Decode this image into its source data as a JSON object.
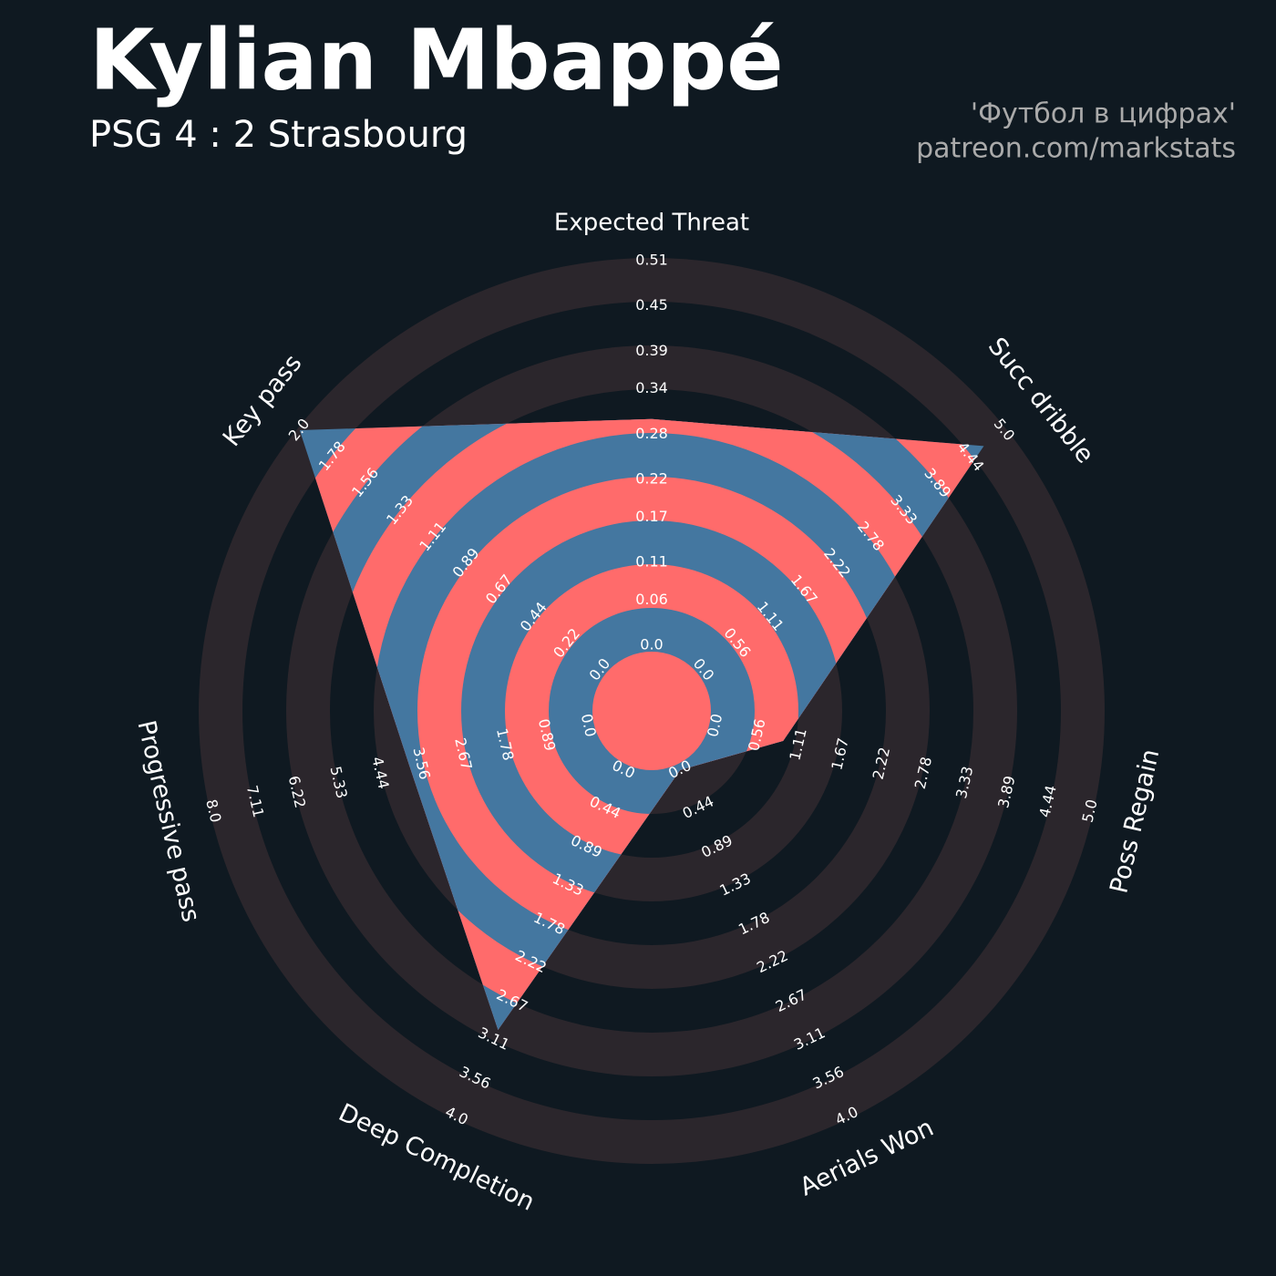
{
  "chart_data": {
    "type": "radar",
    "title": "Kylian Mbappé",
    "subtitle": "PSG 4 : 2 Strasbourg",
    "credits": [
      "'Футбол в цифрах'",
      "patreon.com/markstats"
    ],
    "categories": [
      "Expected Threat",
      "Succ dribble",
      "Poss Regain",
      "Aerials Won",
      "Deep Completion",
      "Progressive pass",
      "Key pass"
    ],
    "values": [
      0.3,
      4.67,
      0.9,
      0,
      3.0,
      3.8,
      2.0
    ],
    "rlims": [
      [
        0,
        0.51
      ],
      [
        0,
        5
      ],
      [
        0,
        5
      ],
      [
        0,
        4
      ],
      [
        0,
        4
      ],
      [
        0,
        8
      ],
      [
        0,
        2
      ]
    ],
    "rticks": [
      [
        {
          "value": 0,
          "label": "0.0"
        },
        0.06,
        0.11,
        0.17,
        0.22,
        0.28,
        0.34,
        0.39,
        0.45,
        0.51
      ],
      [
        {
          "value": 0,
          "label": "0.0"
        },
        0.56,
        1.11,
        1.67,
        2.22,
        2.78,
        3.33,
        3.89,
        4.44,
        {
          "value": 5,
          "label": "5.0"
        }
      ],
      [
        {
          "value": 0,
          "label": "0.0"
        },
        0.56,
        1.11,
        1.67,
        2.22,
        2.78,
        3.33,
        3.89,
        4.44,
        {
          "value": 5,
          "label": "5.0"
        }
      ],
      [
        {
          "value": 0,
          "label": "0.0"
        },
        0.44,
        0.89,
        1.33,
        1.78,
        2.22,
        2.67,
        3.11,
        3.56,
        {
          "value": 4,
          "label": "4.0"
        }
      ],
      [
        {
          "value": 0,
          "label": "0.0"
        },
        0.44,
        0.89,
        1.33,
        1.78,
        2.22,
        2.67,
        3.11,
        3.56,
        {
          "value": 4,
          "label": "4.0"
        }
      ],
      [
        {
          "value": 0,
          "label": "0.0"
        },
        0.89,
        1.78,
        2.67,
        3.56,
        4.44,
        5.33,
        6.22,
        7.11,
        {
          "value": 8,
          "label": "8.0"
        }
      ],
      [
        {
          "value": 0,
          "label": "0.0"
        },
        0.22,
        0.44,
        0.67,
        0.89,
        1.11,
        1.33,
        1.56,
        1.78,
        {
          "value": 2,
          "label": "2.0"
        }
      ]
    ],
    "colors": {
      "fill_a": "#4477a0",
      "fill_b": "#ff6b6b",
      "ring": "#2b262c",
      "background": "#0f1921"
    }
  }
}
